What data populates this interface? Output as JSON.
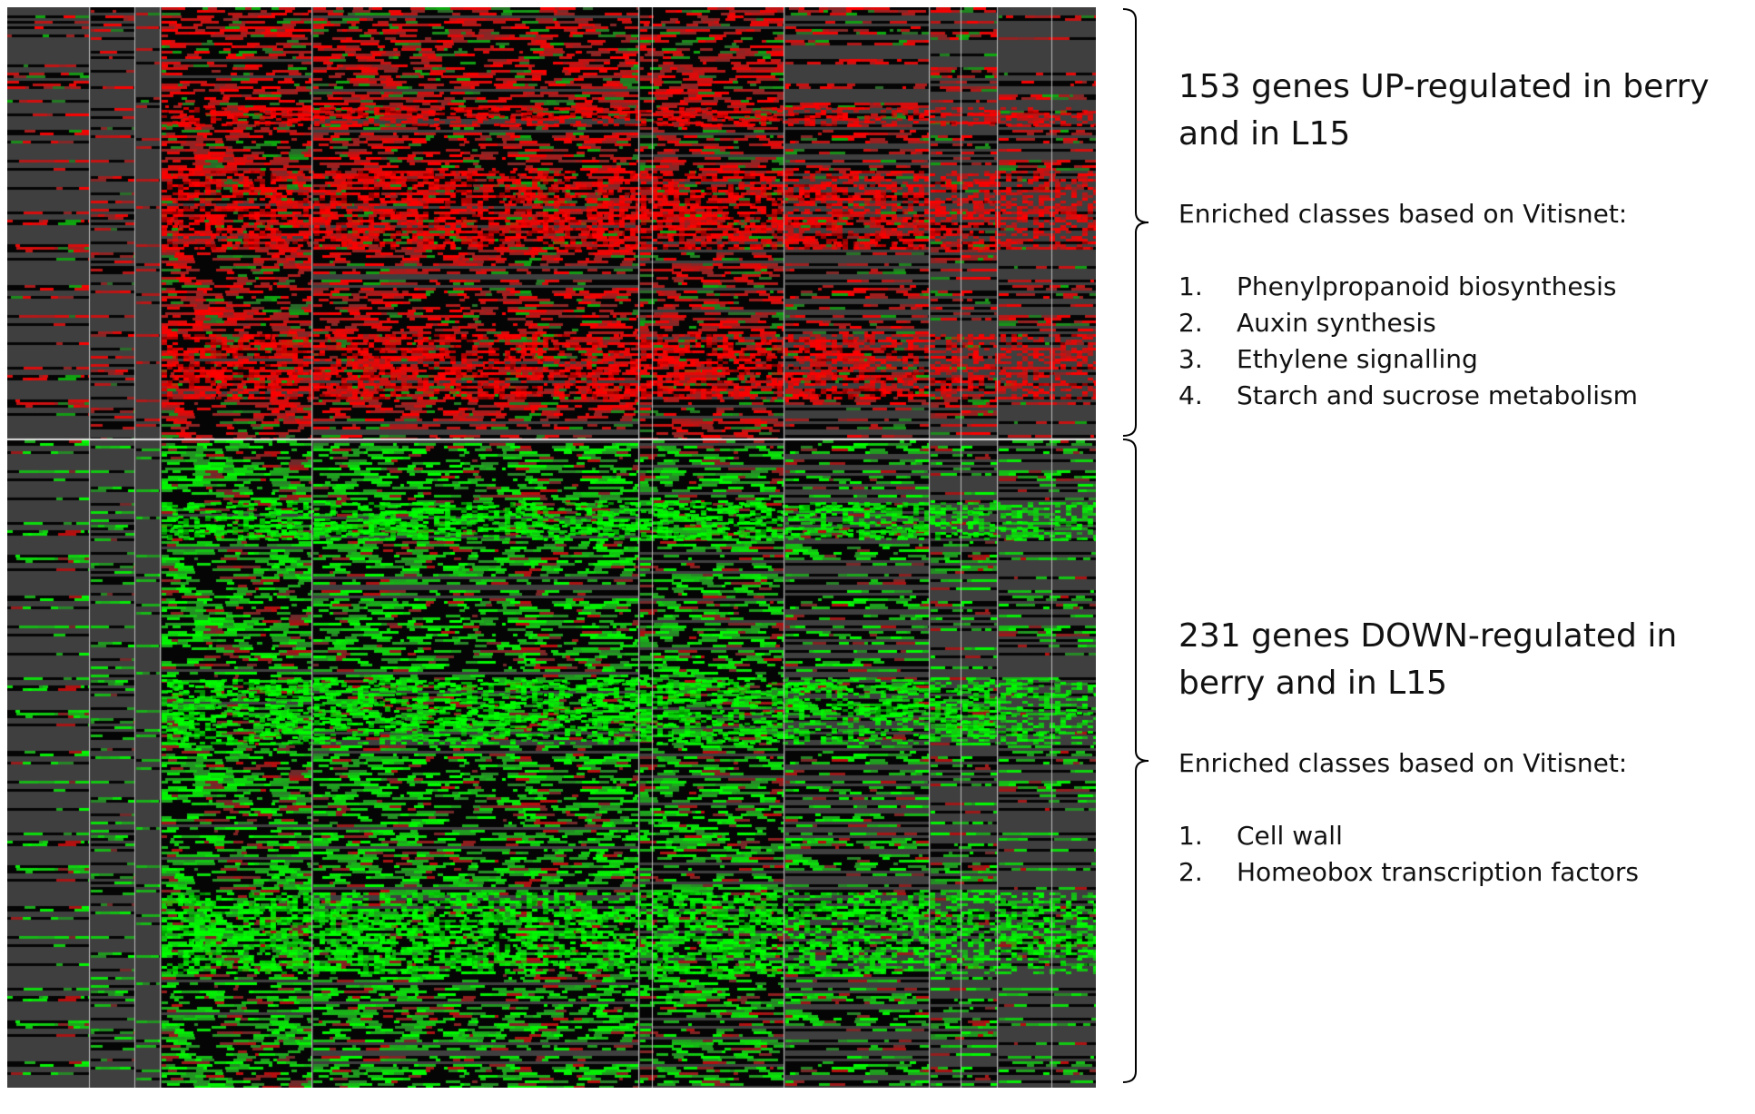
{
  "chart_data": {
    "type": "heatmap",
    "title": "",
    "xlabel": "",
    "ylabel": "",
    "color_scale": {
      "up": "#ff0000",
      "neutral": "#000000",
      "down": "#00ff00",
      "missing": "#3f3f3f"
    },
    "gene_clusters": [
      {
        "name": "UP",
        "gene_count": 153,
        "dominant_color": "#ff0000"
      },
      {
        "name": "DOWN",
        "gene_count": 231,
        "dominant_color": "#00ff00"
      }
    ],
    "legend_groups": [
      {
        "headline": "153 genes UP-regulated in berry and in L15",
        "subtitle": "Enriched classes based on Vitisnet:",
        "classes": [
          {
            "num": "1.",
            "label": "Phenylpropanoid biosynthesis"
          },
          {
            "num": "2.",
            "label": "Auxin synthesis"
          },
          {
            "num": "3.",
            "label": "Ethylene signalling"
          },
          {
            "num": "4.",
            "label": "Starch and sucrose metabolism"
          }
        ]
      },
      {
        "headline": "231 genes DOWN-regulated in berry and in L15",
        "subtitle": "Enriched classes based on Vitisnet:",
        "classes": [
          {
            "num": "1.",
            "label": "Cell wall"
          },
          {
            "num": "2.",
            "label": "Homeobox transcription factors"
          }
        ]
      }
    ]
  }
}
